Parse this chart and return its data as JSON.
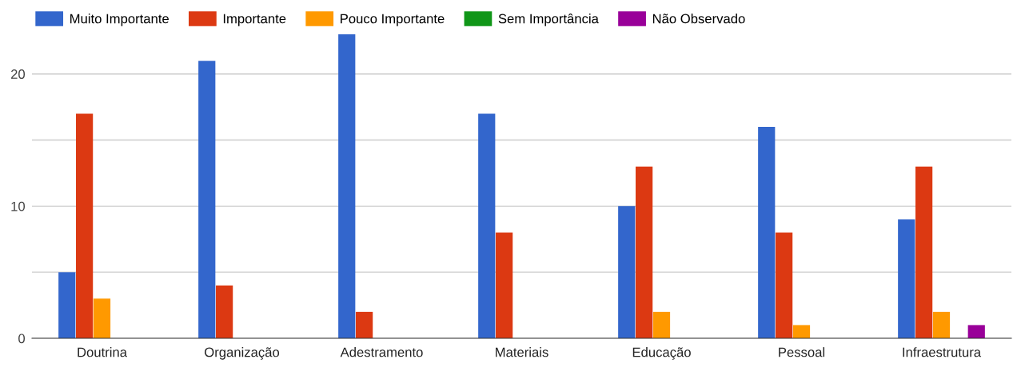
{
  "chart_data": {
    "type": "bar",
    "categories": [
      "Doutrina",
      "Organização",
      "Adestramento",
      "Materiais",
      "Educação",
      "Pessoal",
      "Infraestrutura"
    ],
    "series": [
      {
        "name": "Muito Importante",
        "color": "#3366cc",
        "values": [
          5,
          21,
          23,
          17,
          10,
          16,
          9
        ]
      },
      {
        "name": "Importante",
        "color": "#dc3912",
        "values": [
          17,
          4,
          2,
          8,
          13,
          8,
          13
        ]
      },
      {
        "name": "Pouco Importante",
        "color": "#ff9900",
        "values": [
          3,
          0,
          0,
          0,
          2,
          1,
          2
        ]
      },
      {
        "name": "Sem Importância",
        "color": "#109618",
        "values": [
          0,
          0,
          0,
          0,
          0,
          0,
          0
        ]
      },
      {
        "name": "Não Observado",
        "color": "#990099",
        "values": [
          0,
          0,
          0,
          0,
          0,
          0,
          1
        ]
      }
    ],
    "ylim": [
      0,
      23
    ],
    "yticks": [
      0,
      {
        "value": 5,
        "label": null
      },
      10,
      {
        "value": 15,
        "label": null
      },
      20
    ],
    "grid": "y",
    "legend": "top left"
  }
}
